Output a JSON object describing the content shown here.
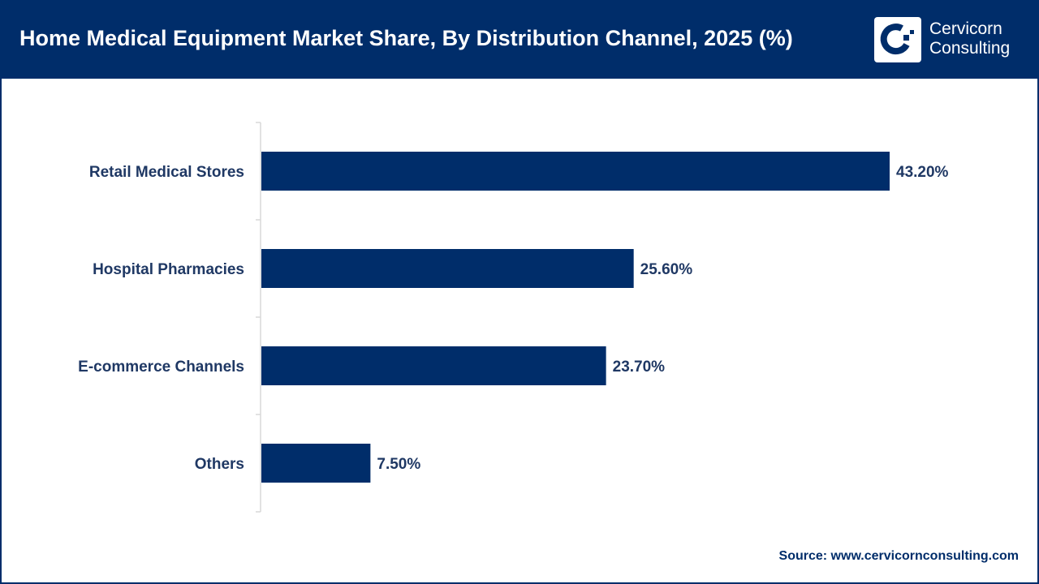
{
  "header": {
    "title": "Home Medical Equipment Market Share, By Distribution Channel, 2025 (%)",
    "logo_line1": "Cervicorn",
    "logo_line2": "Consulting"
  },
  "source": "Source: www.cervicornconsulting.com",
  "colors": {
    "bar": "#002d6a",
    "header": "#002d6a"
  },
  "chart_data": {
    "type": "bar",
    "orientation": "horizontal",
    "title": "Home Medical Equipment Market Share, By Distribution Channel, 2025 (%)",
    "categories": [
      "Retail Medical Stores",
      "Hospital Pharmacies",
      "E-commerce Channels",
      "Others"
    ],
    "values": [
      43.2,
      25.6,
      23.7,
      7.5
    ],
    "data_labels": [
      "43.20%",
      "25.60%",
      "23.70%",
      "7.50%"
    ],
    "xlim": [
      0,
      43.2
    ],
    "grid": false
  }
}
